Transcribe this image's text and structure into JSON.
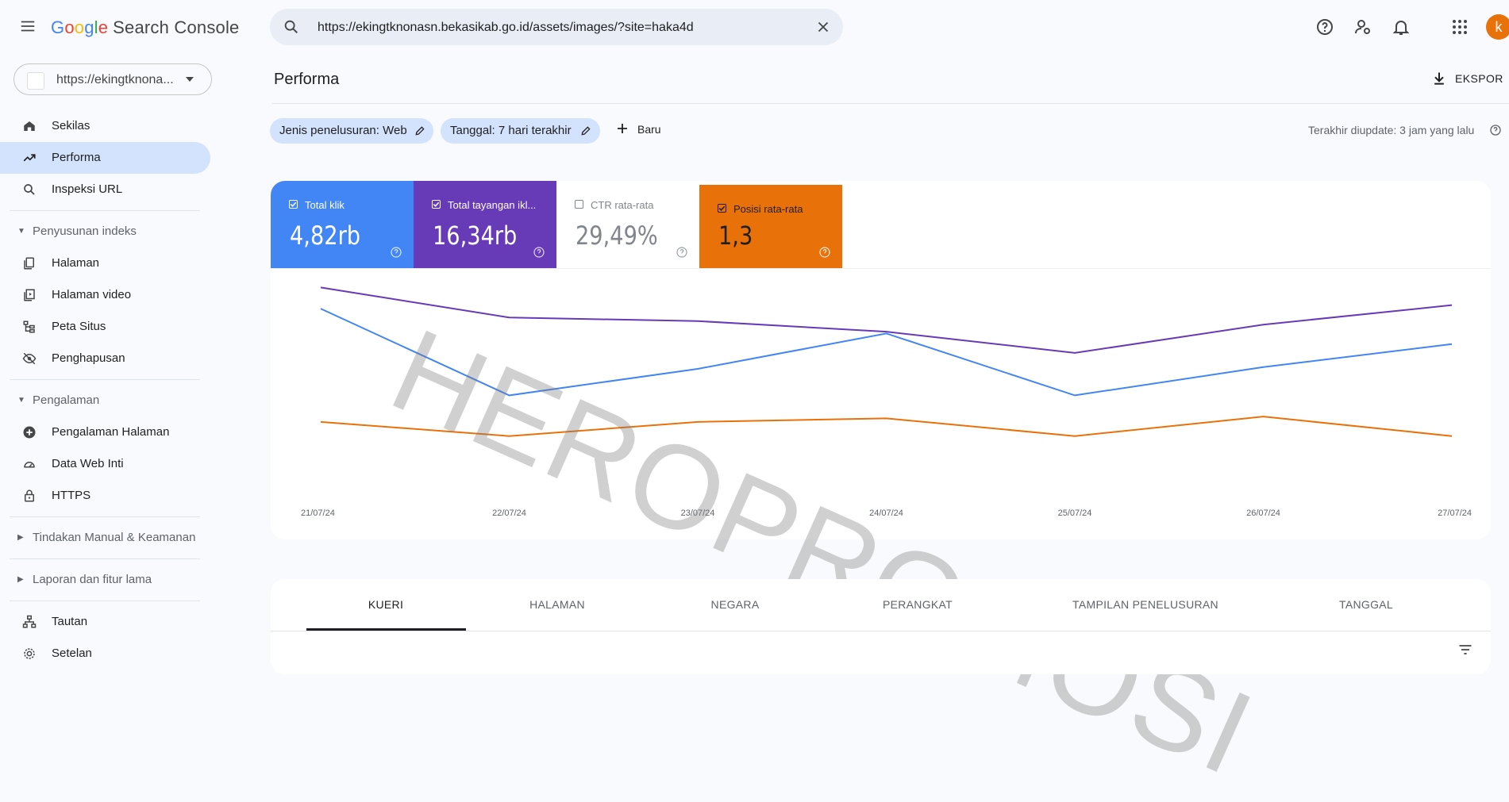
{
  "app": {
    "logo_google": [
      "G",
      "o",
      "o",
      "g",
      "l",
      "e"
    ],
    "logo_product": "Search Console",
    "brand_colors": [
      "#4285F4",
      "#EA4335",
      "#FBBC05",
      "#4285F4",
      "#34A853",
      "#EA4335"
    ]
  },
  "search": {
    "value": "https://ekingtknonasn.bekasikab.go.id/assets/images/?site=haka4d"
  },
  "topbar": {
    "icons": [
      "help-icon",
      "manage-users-icon",
      "notifications-icon",
      "apps-icon"
    ],
    "avatar_letter": "k"
  },
  "property": {
    "label": "https://ekingtknona..."
  },
  "sidebar": {
    "items": [
      {
        "type": "item",
        "label": "Sekilas",
        "icon": "home-icon"
      },
      {
        "type": "item",
        "label": "Performa",
        "icon": "trending-up-icon",
        "active": true
      },
      {
        "type": "item",
        "label": "Inspeksi URL",
        "icon": "search-icon"
      },
      {
        "type": "divider"
      },
      {
        "type": "section",
        "label": "Penyusunan indeks",
        "expanded": true
      },
      {
        "type": "item",
        "label": "Halaman",
        "icon": "pages-icon"
      },
      {
        "type": "item",
        "label": "Halaman video",
        "icon": "video-pages-icon"
      },
      {
        "type": "item",
        "label": "Peta Situs",
        "icon": "sitemap-icon"
      },
      {
        "type": "item",
        "label": "Penghapusan",
        "icon": "visibility-off-icon"
      },
      {
        "type": "divider"
      },
      {
        "type": "section",
        "label": "Pengalaman",
        "expanded": true
      },
      {
        "type": "item",
        "label": "Pengalaman Halaman",
        "icon": "add-circle-icon"
      },
      {
        "type": "item",
        "label": "Data Web Inti",
        "icon": "speed-icon"
      },
      {
        "type": "item",
        "label": "HTTPS",
        "icon": "lock-icon"
      },
      {
        "type": "divider"
      },
      {
        "type": "section",
        "label": "Tindakan Manual & Keamanan",
        "expanded": false
      },
      {
        "type": "divider"
      },
      {
        "type": "section",
        "label": "Laporan dan fitur lama",
        "expanded": false
      },
      {
        "type": "divider"
      },
      {
        "type": "item",
        "label": "Tautan",
        "icon": "links-icon"
      },
      {
        "type": "item",
        "label": "Setelan",
        "icon": "settings-icon"
      }
    ]
  },
  "main": {
    "title": "Performa",
    "export_label": "EKSPOR",
    "filters": [
      {
        "label": "Jenis penelusuran: Web"
      },
      {
        "label": "Tanggal: 7 hari terakhir"
      }
    ],
    "new_filter_label": "Baru",
    "last_updated": "Terakhir diupdate: 3 jam yang lalu"
  },
  "metrics": [
    {
      "label": "Total klik",
      "value": "4,82rb",
      "checked": true,
      "color": "#4285F4"
    },
    {
      "label": "Total tayangan ikl...",
      "value": "16,34rb",
      "checked": true,
      "color": "#673AB7"
    },
    {
      "label": "CTR rata-rata",
      "value": "29,49%",
      "checked": false,
      "color": "#ffffff"
    },
    {
      "label": "Posisi rata-rata",
      "value": "1,3",
      "checked": true,
      "color": "#E8710A"
    }
  ],
  "watermark": "HEROPROMOSI",
  "chart_data": {
    "type": "line",
    "x": [
      "21/07/24",
      "22/07/24",
      "23/07/24",
      "24/07/24",
      "25/07/24",
      "26/07/24",
      "27/07/24"
    ],
    "series": [
      {
        "name": "Total klik",
        "color": "#4285F4",
        "values": [
          0.82,
          0.33,
          0.48,
          0.68,
          0.33,
          0.49,
          0.62
        ]
      },
      {
        "name": "Total tayangan iklan",
        "color": "#673AB7",
        "values": [
          0.94,
          0.77,
          0.75,
          0.69,
          0.57,
          0.73,
          0.84
        ]
      },
      {
        "name": "Posisi rata-rata",
        "color": "#E8710A",
        "values": [
          0.18,
          0.1,
          0.18,
          0.2,
          0.1,
          0.21,
          0.1
        ]
      }
    ],
    "ylim": [
      0,
      1
    ],
    "grid": false
  },
  "tabs": [
    {
      "label": "KUERI",
      "active": true
    },
    {
      "label": "HALAMAN"
    },
    {
      "label": "NEGARA"
    },
    {
      "label": "PERANGKAT"
    },
    {
      "label": "TAMPILAN PENELUSURAN"
    },
    {
      "label": "TANGGAL"
    }
  ]
}
